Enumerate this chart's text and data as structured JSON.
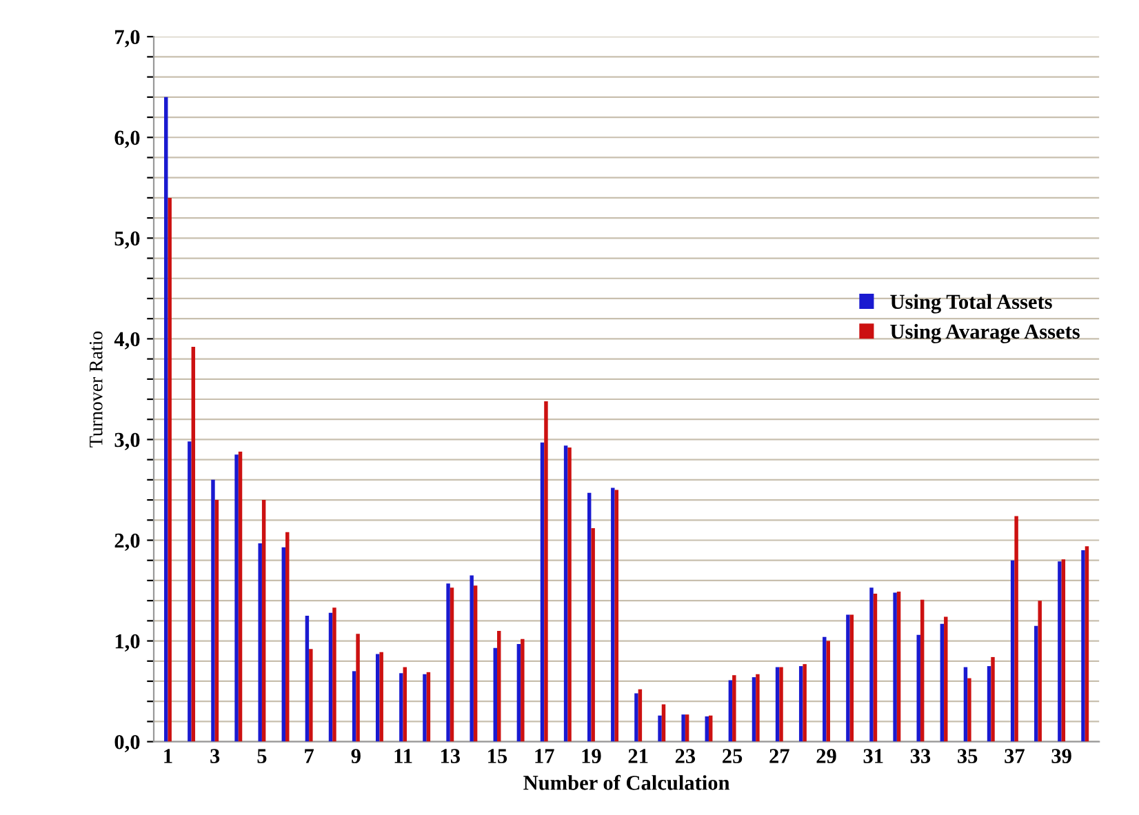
{
  "chart_data": {
    "type": "bar",
    "xlabel": "Number of Calculation",
    "ylabel": "Turnover Ratio",
    "categories": [
      "1",
      null,
      "3",
      null,
      "5",
      null,
      "7",
      null,
      "9",
      null,
      "11",
      null,
      "13",
      null,
      "15",
      null,
      "17",
      null,
      "19",
      null,
      "21",
      null,
      "23",
      null,
      "25",
      null,
      "27",
      null,
      "29",
      null,
      "31",
      null,
      "33",
      null,
      "35",
      null,
      "37",
      null,
      "39",
      null
    ],
    "series": [
      {
        "name": "Using Total Assets",
        "color": "#1a1ad0",
        "values": [
          6.4,
          2.98,
          2.6,
          2.85,
          1.97,
          1.93,
          1.25,
          1.28,
          0.7,
          0.87,
          0.68,
          0.67,
          1.57,
          1.65,
          0.93,
          0.97,
          2.97,
          2.94,
          2.47,
          2.52,
          0.48,
          0.26,
          0.27,
          0.25,
          0.61,
          0.64,
          0.74,
          0.75,
          1.04,
          1.26,
          1.53,
          1.48,
          1.06,
          1.17,
          0.74,
          0.75,
          1.8,
          1.15,
          1.79,
          1.9
        ]
      },
      {
        "name": "Using Avarage Assets",
        "color": "#cc1111",
        "values": [
          5.4,
          3.92,
          2.4,
          2.88,
          2.4,
          2.08,
          0.92,
          1.33,
          1.07,
          0.89,
          0.74,
          0.69,
          1.53,
          1.55,
          1.1,
          1.02,
          3.38,
          2.92,
          2.12,
          2.5,
          0.52,
          0.37,
          0.27,
          0.26,
          0.66,
          0.67,
          0.74,
          0.77,
          1.0,
          1.26,
          1.47,
          1.49,
          1.41,
          1.24,
          0.63,
          0.84,
          2.24,
          1.4,
          1.81,
          1.94
        ]
      }
    ],
    "ylim": [
      0,
      7
    ],
    "yticks": [
      {
        "value": 0,
        "label": "0,0"
      },
      {
        "value": 0.2,
        "label": null
      },
      {
        "value": 0.4,
        "label": null
      },
      {
        "value": 0.6,
        "label": null
      },
      {
        "value": 0.8,
        "label": null
      },
      {
        "value": 1,
        "label": "1,0"
      },
      {
        "value": 1.2,
        "label": null
      },
      {
        "value": 1.4,
        "label": null
      },
      {
        "value": 1.6,
        "label": null
      },
      {
        "value": 1.8,
        "label": null
      },
      {
        "value": 2,
        "label": "2,0"
      },
      {
        "value": 2.2,
        "label": null
      },
      {
        "value": 2.4,
        "label": null
      },
      {
        "value": 2.6,
        "label": null
      },
      {
        "value": 2.8,
        "label": null
      },
      {
        "value": 3,
        "label": "3,0"
      },
      {
        "value": 3.2,
        "label": null
      },
      {
        "value": 3.4,
        "label": null
      },
      {
        "value": 3.6,
        "label": null
      },
      {
        "value": 3.8,
        "label": null
      },
      {
        "value": 4,
        "label": "4,0"
      },
      {
        "value": 4.2,
        "label": null
      },
      {
        "value": 4.4,
        "label": null
      },
      {
        "value": 4.6,
        "label": null
      },
      {
        "value": 4.8,
        "label": null
      },
      {
        "value": 5,
        "label": "5,0"
      },
      {
        "value": 5.2,
        "label": null
      },
      {
        "value": 5.4,
        "label": null
      },
      {
        "value": 5.6,
        "label": null
      },
      {
        "value": 5.8,
        "label": null
      },
      {
        "value": 6,
        "label": "6,0"
      },
      {
        "value": 6.2,
        "label": null
      },
      {
        "value": 6.4,
        "label": null
      },
      {
        "value": 6.6,
        "label": null
      },
      {
        "value": 6.8,
        "label": null
      },
      {
        "value": 7,
        "label": "7,0"
      }
    ],
    "grid": "y",
    "legend": "right"
  }
}
